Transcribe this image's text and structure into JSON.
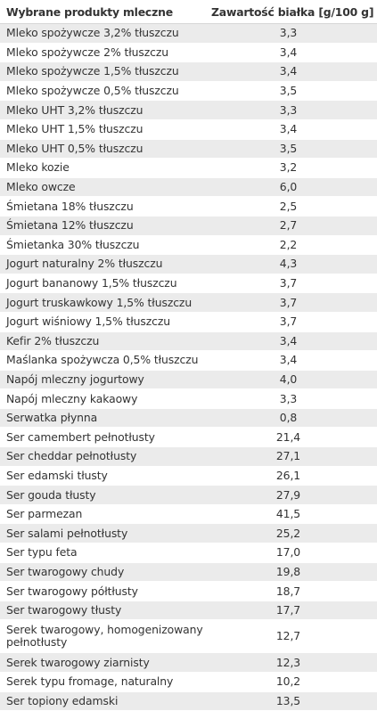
{
  "table": {
    "headers": {
      "product": "Wybrane produkty mleczne",
      "protein": "Zawartość białka [g/100 g]"
    },
    "rows": [
      {
        "name": "Mleko spożywcze 3,2% tłuszczu",
        "value": "3,3"
      },
      {
        "name": "Mleko spożywcze 2% tłuszczu",
        "value": "3,4"
      },
      {
        "name": "Mleko spożywcze 1,5% tłuszczu",
        "value": "3,4"
      },
      {
        "name": "Mleko spożywcze 0,5% tłuszczu",
        "value": "3,5"
      },
      {
        "name": "Mleko UHT 3,2% tłuszczu",
        "value": "3,3"
      },
      {
        "name": "Mleko UHT 1,5% tłuszczu",
        "value": "3,4"
      },
      {
        "name": "Mleko UHT 0,5% tłuszczu",
        "value": "3,5"
      },
      {
        "name": "Mleko kozie",
        "value": "3,2"
      },
      {
        "name": "Mleko owcze",
        "value": "6,0"
      },
      {
        "name": "Śmietana 18% tłuszczu",
        "value": "2,5"
      },
      {
        "name": "Śmietana 12% tłuszczu",
        "value": "2,7"
      },
      {
        "name": "Śmietanka 30% tłuszczu",
        "value": "2,2"
      },
      {
        "name": "Jogurt naturalny 2% tłuszczu",
        "value": "4,3"
      },
      {
        "name": "Jogurt bananowy 1,5% tłuszczu",
        "value": "3,7"
      },
      {
        "name": "Jogurt truskawkowy 1,5% tłuszczu",
        "value": "3,7"
      },
      {
        "name": "Jogurt wiśniowy 1,5% tłuszczu",
        "value": "3,7"
      },
      {
        "name": "Kefir 2% tłuszczu",
        "value": "3,4"
      },
      {
        "name": "Maślanka spożywcza 0,5% tłuszczu",
        "value": "3,4"
      },
      {
        "name": "Napój mleczny jogurtowy",
        "value": "4,0"
      },
      {
        "name": "Napój mleczny kakaowy",
        "value": "3,3"
      },
      {
        "name": "Serwatka płynna",
        "value": "0,8"
      },
      {
        "name": "Ser camembert pełnotłusty",
        "value": "21,4"
      },
      {
        "name": "Ser cheddar pełnotłusty",
        "value": "27,1"
      },
      {
        "name": "Ser edamski tłusty",
        "value": "26,1"
      },
      {
        "name": "Ser gouda tłusty",
        "value": "27,9"
      },
      {
        "name": "Ser parmezan",
        "value": "41,5"
      },
      {
        "name": "Ser salami pełnotłusty",
        "value": "25,2"
      },
      {
        "name": "Ser typu feta",
        "value": "17,0"
      },
      {
        "name": "Ser twarogowy chudy",
        "value": "19,8"
      },
      {
        "name": "Ser twarogowy półtłusty",
        "value": "18,7"
      },
      {
        "name": "Ser twarogowy tłusty",
        "value": "17,7"
      },
      {
        "name": "Serek twarogowy, homogenizowany pełnotłusty",
        "value": "12,7"
      },
      {
        "name": "Serek twarogowy ziarnisty",
        "value": "12,3"
      },
      {
        "name": "Serek typu fromage, naturalny",
        "value": "10,2"
      },
      {
        "name": "Ser topiony edamski",
        "value": "13,5"
      }
    ]
  }
}
